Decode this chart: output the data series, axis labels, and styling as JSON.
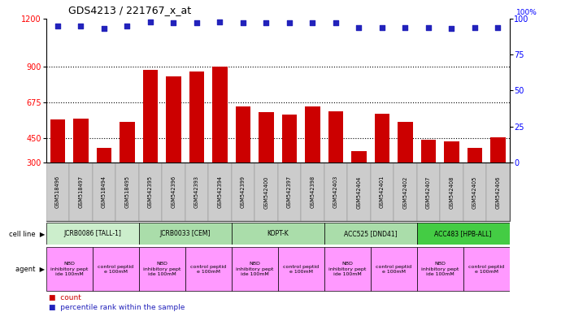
{
  "title": "GDS4213 / 221767_x_at",
  "samples": [
    "GSM518496",
    "GSM518497",
    "GSM518494",
    "GSM518495",
    "GSM542395",
    "GSM542396",
    "GSM542393",
    "GSM542394",
    "GSM542399",
    "GSM542400",
    "GSM542397",
    "GSM542398",
    "GSM542403",
    "GSM542404",
    "GSM542401",
    "GSM542402",
    "GSM542407",
    "GSM542408",
    "GSM542405",
    "GSM542406"
  ],
  "counts": [
    570,
    575,
    390,
    555,
    880,
    840,
    870,
    900,
    650,
    615,
    600,
    650,
    618,
    370,
    605,
    555,
    440,
    430,
    390,
    455
  ],
  "percentiles": [
    95,
    95,
    93,
    95,
    98,
    97,
    97,
    98,
    97,
    97,
    97,
    97,
    97,
    94,
    94,
    94,
    94,
    93,
    94,
    94
  ],
  "bar_color": "#cc0000",
  "dot_color": "#2222bb",
  "ylim_left": [
    300,
    1200
  ],
  "yticks_left": [
    300,
    450,
    675,
    900,
    1200
  ],
  "ylim_right": [
    0,
    100
  ],
  "yticks_right": [
    0,
    25,
    50,
    75,
    100
  ],
  "hlines": [
    450,
    675,
    900
  ],
  "cell_lines": [
    {
      "label": "JCRB0086 [TALL-1]",
      "start": 0,
      "end": 4,
      "color": "#cceecc"
    },
    {
      "label": "JCRB0033 [CEM]",
      "start": 4,
      "end": 8,
      "color": "#aaddaa"
    },
    {
      "label": "KOPT-K",
      "start": 8,
      "end": 12,
      "color": "#aaddaa"
    },
    {
      "label": "ACC525 [DND41]",
      "start": 12,
      "end": 16,
      "color": "#aaddaa"
    },
    {
      "label": "ACC483 [HPB-ALL]",
      "start": 16,
      "end": 20,
      "color": "#44cc44"
    }
  ],
  "agents": [
    {
      "label": "NBD\ninhibitory pept\nide 100mM",
      "start": 0,
      "end": 2
    },
    {
      "label": "control peptid\ne 100mM",
      "start": 2,
      "end": 4
    },
    {
      "label": "NBD\ninhibitory pept\nide 100mM",
      "start": 4,
      "end": 6
    },
    {
      "label": "control peptid\ne 100mM",
      "start": 6,
      "end": 8
    },
    {
      "label": "NBD\ninhibitory pept\nide 100mM",
      "start": 8,
      "end": 10
    },
    {
      "label": "control peptid\ne 100mM",
      "start": 10,
      "end": 12
    },
    {
      "label": "NBD\ninhibitory pept\nide 100mM",
      "start": 12,
      "end": 14
    },
    {
      "label": "control peptid\ne 100mM",
      "start": 14,
      "end": 16
    },
    {
      "label": "NBD\ninhibitory pept\nide 100mM",
      "start": 16,
      "end": 18
    },
    {
      "label": "control peptid\ne 100mM",
      "start": 18,
      "end": 20
    }
  ],
  "agent_color": "#ff99ff",
  "xlab_color": "#cccccc",
  "legend_count_color": "#cc0000",
  "legend_dot_color": "#2222bb"
}
